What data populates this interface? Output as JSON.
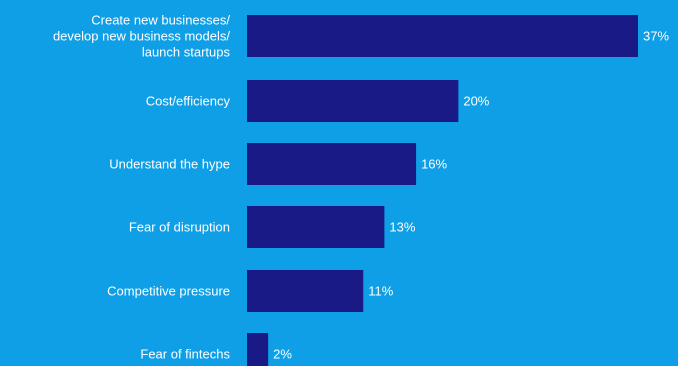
{
  "colors": {
    "background": "#0f9fe6",
    "bar": "#1a1a86",
    "text": "#ffffff"
  },
  "chart_data": {
    "type": "bar",
    "orientation": "horizontal",
    "categories": [
      "Create new businesses/\ndevelop new business models/\nlaunch startups",
      "Cost/efficiency",
      "Understand the hype",
      "Fear of disruption",
      "Competitive pressure",
      "Fear of fintechs"
    ],
    "values": [
      37,
      20,
      16,
      13,
      11,
      2
    ],
    "value_labels": [
      "37%",
      "20%",
      "16%",
      "13%",
      "11%",
      "2%"
    ],
    "unit": "%",
    "xlim": [
      0,
      37
    ],
    "grid": false,
    "legend": "none"
  }
}
